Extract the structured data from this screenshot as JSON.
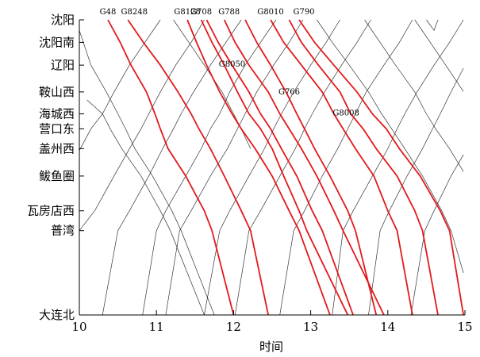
{
  "chart_data": {
    "type": "line",
    "subtype": "train-timetable-diagram",
    "title": "",
    "xlabel": "时间",
    "ylabel": "",
    "xlim": [
      10,
      15
    ],
    "x_ticks": [
      "10",
      "11",
      "12",
      "13",
      "14",
      "15"
    ],
    "stations": [
      {
        "name": "沈阳",
        "pos": 0
      },
      {
        "name": "沈阳南",
        "pos": 0.107
      },
      {
        "name": "辽阳",
        "pos": 0.215
      },
      {
        "name": "鞍山西",
        "pos": 0.342
      },
      {
        "name": "海城西",
        "pos": 0.446
      },
      {
        "name": "营口东",
        "pos": 0.517
      },
      {
        "name": "盖州西",
        "pos": 0.611
      },
      {
        "name": "鲅鱼圈",
        "pos": 0.741
      },
      {
        "name": "瓦房店西",
        "pos": 0.906
      },
      {
        "name": "普湾",
        "pos": 1.0
      },
      {
        "name": "大连北",
        "pos": 1.4
      }
    ],
    "highlight_color": "#e3191c",
    "background_color": "#333333",
    "labeled_trains": [
      {
        "name": "G48",
        "points": [
          [
            10.37,
            0
          ],
          [
            10.53,
            0.107
          ],
          [
            10.67,
            0.215
          ],
          [
            10.87,
            0.342
          ],
          [
            10.98,
            0.446
          ],
          [
            11.05,
            0.517
          ],
          [
            11.15,
            0.611
          ],
          [
            11.38,
            0.741
          ],
          [
            11.62,
            0.906
          ],
          [
            11.72,
            1.0
          ],
          [
            12.0,
            1.4
          ]
        ]
      },
      {
        "name": "G8248",
        "points": [
          [
            10.63,
            0
          ],
          [
            10.83,
            0.107
          ],
          [
            11.05,
            0.215
          ],
          [
            11.28,
            0.342
          ],
          [
            11.45,
            0.446
          ],
          [
            11.55,
            0.517
          ],
          [
            11.7,
            0.611
          ],
          [
            11.88,
            0.741
          ],
          [
            12.1,
            0.906
          ],
          [
            12.22,
            1.0
          ],
          [
            12.45,
            1.4
          ]
        ]
      },
      {
        "name": "G8128",
        "points": [
          [
            11.4,
            0
          ],
          [
            11.52,
            0.107
          ],
          [
            11.65,
            0.215
          ],
          [
            11.82,
            0.342
          ],
          [
            11.98,
            0.446
          ],
          [
            12.1,
            0.517
          ],
          [
            12.28,
            0.611
          ],
          [
            12.5,
            0.741
          ],
          [
            12.72,
            0.906
          ],
          [
            12.85,
            1.0
          ],
          [
            13.25,
            1.4
          ]
        ]
      },
      {
        "name": "G708",
        "points": [
          [
            11.58,
            0
          ],
          [
            11.72,
            0.107
          ],
          [
            11.88,
            0.215
          ],
          [
            12.05,
            0.342
          ],
          [
            12.2,
            0.446
          ],
          [
            12.35,
            0.517
          ],
          [
            12.5,
            0.611
          ],
          [
            12.65,
            0.741
          ],
          [
            12.85,
            0.906
          ],
          [
            12.95,
            1.0
          ],
          [
            13.48,
            1.4
          ]
        ]
      },
      {
        "name": "G8050",
        "points": [
          [
            11.65,
            0
          ],
          [
            11.8,
            0.107
          ],
          [
            11.98,
            0.215
          ],
          [
            12.2,
            0.342
          ],
          [
            12.35,
            0.446
          ],
          [
            12.48,
            0.517
          ],
          [
            12.62,
            0.611
          ],
          [
            12.82,
            0.741
          ],
          [
            13.02,
            0.906
          ],
          [
            13.15,
            1.0
          ],
          [
            13.55,
            1.4
          ]
        ]
      },
      {
        "name": "G788",
        "points": [
          [
            11.88,
            0
          ],
          [
            12.02,
            0.107
          ],
          [
            12.2,
            0.215
          ],
          [
            12.45,
            0.342
          ],
          [
            12.6,
            0.446
          ],
          [
            12.72,
            0.517
          ],
          [
            12.88,
            0.611
          ],
          [
            13.08,
            0.741
          ],
          [
            13.3,
            0.906
          ],
          [
            13.42,
            1.0
          ],
          [
            13.95,
            1.4
          ]
        ]
      },
      {
        "name": "G766",
        "points": [
          [
            12.15,
            0
          ],
          [
            12.3,
            0.107
          ],
          [
            12.48,
            0.215
          ],
          [
            12.68,
            0.342
          ],
          [
            12.82,
            0.446
          ],
          [
            12.92,
            0.517
          ],
          [
            13.05,
            0.611
          ],
          [
            13.25,
            0.741
          ],
          [
            13.48,
            0.906
          ],
          [
            13.58,
            1.0
          ],
          [
            13.85,
            1.4
          ]
        ]
      },
      {
        "name": "G8010",
        "points": [
          [
            12.48,
            0
          ],
          [
            12.65,
            0.107
          ],
          [
            12.88,
            0.215
          ],
          [
            13.15,
            0.342
          ],
          [
            13.3,
            0.446
          ],
          [
            13.42,
            0.517
          ],
          [
            13.58,
            0.611
          ],
          [
            13.82,
            0.741
          ],
          [
            14.0,
            0.906
          ],
          [
            14.12,
            1.0
          ],
          [
            14.32,
            1.4
          ]
        ]
      },
      {
        "name": "G8008",
        "points": [
          [
            12.72,
            0
          ],
          [
            12.88,
            0.107
          ],
          [
            13.1,
            0.215
          ],
          [
            13.38,
            0.342
          ],
          [
            13.52,
            0.446
          ],
          [
            13.68,
            0.517
          ],
          [
            13.85,
            0.611
          ],
          [
            14.12,
            0.741
          ],
          [
            14.35,
            0.906
          ],
          [
            14.45,
            1.0
          ],
          [
            14.65,
            1.4
          ]
        ]
      },
      {
        "name": "G790",
        "points": [
          [
            12.85,
            0
          ],
          [
            13.05,
            0.107
          ],
          [
            13.3,
            0.215
          ],
          [
            13.6,
            0.342
          ],
          [
            13.8,
            0.446
          ],
          [
            13.98,
            0.517
          ],
          [
            14.15,
            0.611
          ],
          [
            14.42,
            0.741
          ],
          [
            14.68,
            0.906
          ],
          [
            14.8,
            1.0
          ],
          [
            14.98,
            1.4
          ]
        ]
      }
    ],
    "label_texts": [
      {
        "text": "G48",
        "anchor_train": "G48"
      },
      {
        "text": "G8248",
        "anchor_train": "G8248"
      },
      {
        "text": "G8128",
        "anchor_train": "G8128"
      },
      {
        "text": "G708",
        "anchor_train": "G708"
      },
      {
        "text": "G788",
        "anchor_train": "G788"
      },
      {
        "text": "G8010",
        "anchor_train": "G8010"
      },
      {
        "text": "G790",
        "anchor_train": "G790"
      },
      {
        "text": "G8050",
        "anchor_train": "G8050"
      },
      {
        "text": "G766",
        "anchor_train": "G766"
      },
      {
        "text": "G8008",
        "anchor_train": "G8008"
      }
    ],
    "background_trains": [
      {
        "points": [
          [
            10.0,
            0.05
          ],
          [
            10.15,
            0.215
          ],
          [
            10.35,
            0.342
          ],
          [
            10.5,
            0.446
          ],
          [
            10.6,
            0.517
          ],
          [
            10.72,
            0.611
          ],
          [
            10.95,
            0.741
          ],
          [
            11.2,
            0.906
          ],
          [
            11.32,
            1.0
          ],
          [
            11.75,
            1.4
          ]
        ]
      },
      {
        "points": [
          [
            10.1,
            0.38
          ],
          [
            10.3,
            0.446
          ],
          [
            10.4,
            0.517
          ],
          [
            10.55,
            0.611
          ],
          [
            10.8,
            0.741
          ],
          [
            11.05,
            0.906
          ],
          [
            11.18,
            1.0
          ],
          [
            11.62,
            1.4
          ]
        ]
      },
      {
        "points": [
          [
            10.0,
            0.62
          ],
          [
            10.15,
            0.517
          ],
          [
            10.3,
            0.446
          ],
          [
            10.45,
            0.342
          ],
          [
            10.65,
            0.215
          ],
          [
            10.85,
            0.107
          ],
          [
            11.05,
            0.0
          ]
        ]
      },
      {
        "points": [
          [
            10.0,
            1.0
          ],
          [
            10.2,
            0.906
          ],
          [
            10.45,
            0.741
          ],
          [
            10.65,
            0.611
          ],
          [
            10.8,
            0.517
          ],
          [
            10.9,
            0.446
          ],
          [
            11.05,
            0.342
          ],
          [
            11.25,
            0.215
          ],
          [
            11.45,
            0.107
          ],
          [
            11.62,
            0.0
          ]
        ]
      },
      {
        "points": [
          [
            10.3,
            1.4
          ],
          [
            10.5,
            1.0
          ],
          [
            10.65,
            0.906
          ],
          [
            10.9,
            0.741
          ],
          [
            11.08,
            0.611
          ],
          [
            11.22,
            0.517
          ],
          [
            11.32,
            0.446
          ],
          [
            11.48,
            0.342
          ],
          [
            11.7,
            0.215
          ],
          [
            11.9,
            0.107
          ],
          [
            12.1,
            0.0
          ]
        ]
      },
      {
        "points": [
          [
            10.82,
            1.4
          ],
          [
            11.0,
            1.0
          ],
          [
            11.12,
            0.906
          ],
          [
            11.38,
            0.741
          ],
          [
            11.58,
            0.611
          ],
          [
            11.7,
            0.517
          ],
          [
            11.82,
            0.446
          ],
          [
            11.95,
            0.342
          ],
          [
            12.15,
            0.215
          ],
          [
            12.35,
            0.107
          ],
          [
            12.55,
            0.0
          ]
        ]
      },
      {
        "points": [
          [
            11.12,
            1.4
          ],
          [
            11.3,
            1.0
          ],
          [
            11.45,
            0.906
          ],
          [
            11.7,
            0.741
          ],
          [
            11.92,
            0.611
          ],
          [
            12.05,
            0.517
          ],
          [
            12.15,
            0.446
          ],
          [
            12.3,
            0.342
          ],
          [
            12.52,
            0.215
          ],
          [
            12.72,
            0.107
          ],
          [
            12.9,
            0.0
          ]
        ]
      },
      {
        "points": [
          [
            11.62,
            1.4
          ],
          [
            11.82,
            1.0
          ],
          [
            11.95,
            0.906
          ],
          [
            12.2,
            0.741
          ],
          [
            12.4,
            0.611
          ],
          [
            12.52,
            0.517
          ],
          [
            12.62,
            0.446
          ],
          [
            12.78,
            0.342
          ],
          [
            13.0,
            0.215
          ],
          [
            13.2,
            0.107
          ],
          [
            13.38,
            0.0
          ]
        ]
      },
      {
        "points": [
          [
            12.02,
            1.4
          ],
          [
            12.2,
            1.0
          ],
          [
            12.35,
            0.906
          ],
          [
            12.6,
            0.741
          ],
          [
            12.8,
            0.611
          ],
          [
            12.92,
            0.517
          ],
          [
            13.02,
            0.446
          ],
          [
            13.18,
            0.342
          ],
          [
            13.4,
            0.215
          ],
          [
            13.6,
            0.107
          ],
          [
            13.78,
            0.0
          ]
        ]
      },
      {
        "points": [
          [
            12.6,
            1.4
          ],
          [
            12.78,
            1.0
          ],
          [
            12.92,
            0.906
          ],
          [
            13.15,
            0.741
          ],
          [
            13.35,
            0.611
          ],
          [
            13.48,
            0.517
          ],
          [
            13.58,
            0.446
          ],
          [
            13.72,
            0.342
          ],
          [
            13.95,
            0.215
          ],
          [
            14.15,
            0.107
          ],
          [
            14.32,
            0.0
          ]
        ]
      },
      {
        "points": [
          [
            13.28,
            1.4
          ],
          [
            13.42,
            1.0
          ],
          [
            13.55,
            0.906
          ],
          [
            13.8,
            0.741
          ],
          [
            14.0,
            0.611
          ],
          [
            14.12,
            0.517
          ],
          [
            14.22,
            0.446
          ],
          [
            14.38,
            0.342
          ],
          [
            14.6,
            0.215
          ],
          [
            14.8,
            0.107
          ],
          [
            14.98,
            0.0
          ]
        ]
      },
      {
        "points": [
          [
            13.75,
            1.4
          ],
          [
            13.9,
            1.0
          ],
          [
            14.02,
            0.906
          ],
          [
            14.25,
            0.741
          ],
          [
            14.45,
            0.611
          ],
          [
            14.58,
            0.517
          ],
          [
            14.68,
            0.446
          ],
          [
            14.82,
            0.342
          ],
          [
            14.98,
            0.23
          ]
        ]
      },
      {
        "points": [
          [
            14.3,
            1.4
          ],
          [
            14.48,
            1.0
          ],
          [
            14.6,
            0.906
          ],
          [
            14.82,
            0.741
          ],
          [
            14.98,
            0.64
          ]
        ]
      },
      {
        "points": [
          [
            13.08,
            0.0
          ],
          [
            13.28,
            0.107
          ],
          [
            13.5,
            0.215
          ],
          [
            13.75,
            0.342
          ],
          [
            13.92,
            0.446
          ],
          [
            14.05,
            0.517
          ],
          [
            14.22,
            0.611
          ],
          [
            14.45,
            0.741
          ],
          [
            14.7,
            0.906
          ],
          [
            14.82,
            1.0
          ],
          [
            14.98,
            1.2
          ]
        ]
      },
      {
        "points": [
          [
            13.7,
            0.0
          ],
          [
            13.9,
            0.107
          ],
          [
            14.1,
            0.215
          ],
          [
            14.35,
            0.342
          ],
          [
            14.5,
            0.446
          ],
          [
            14.62,
            0.517
          ],
          [
            14.8,
            0.611
          ],
          [
            14.98,
            0.72
          ]
        ]
      },
      {
        "points": [
          [
            14.35,
            0.0
          ],
          [
            14.55,
            0.107
          ],
          [
            14.75,
            0.215
          ],
          [
            14.98,
            0.34
          ]
        ]
      },
      {
        "points": [
          [
            14.5,
            0.0
          ],
          [
            14.6,
            0.05
          ],
          [
            14.65,
            0.0
          ]
        ]
      },
      {
        "points": [
          [
            11.22,
            0.0
          ],
          [
            11.42,
            0.107
          ],
          [
            11.62,
            0.215
          ],
          [
            11.85,
            0.342
          ],
          [
            12.0,
            0.446
          ],
          [
            12.1,
            0.517
          ],
          [
            12.22,
            0.611
          ]
        ]
      }
    ]
  }
}
